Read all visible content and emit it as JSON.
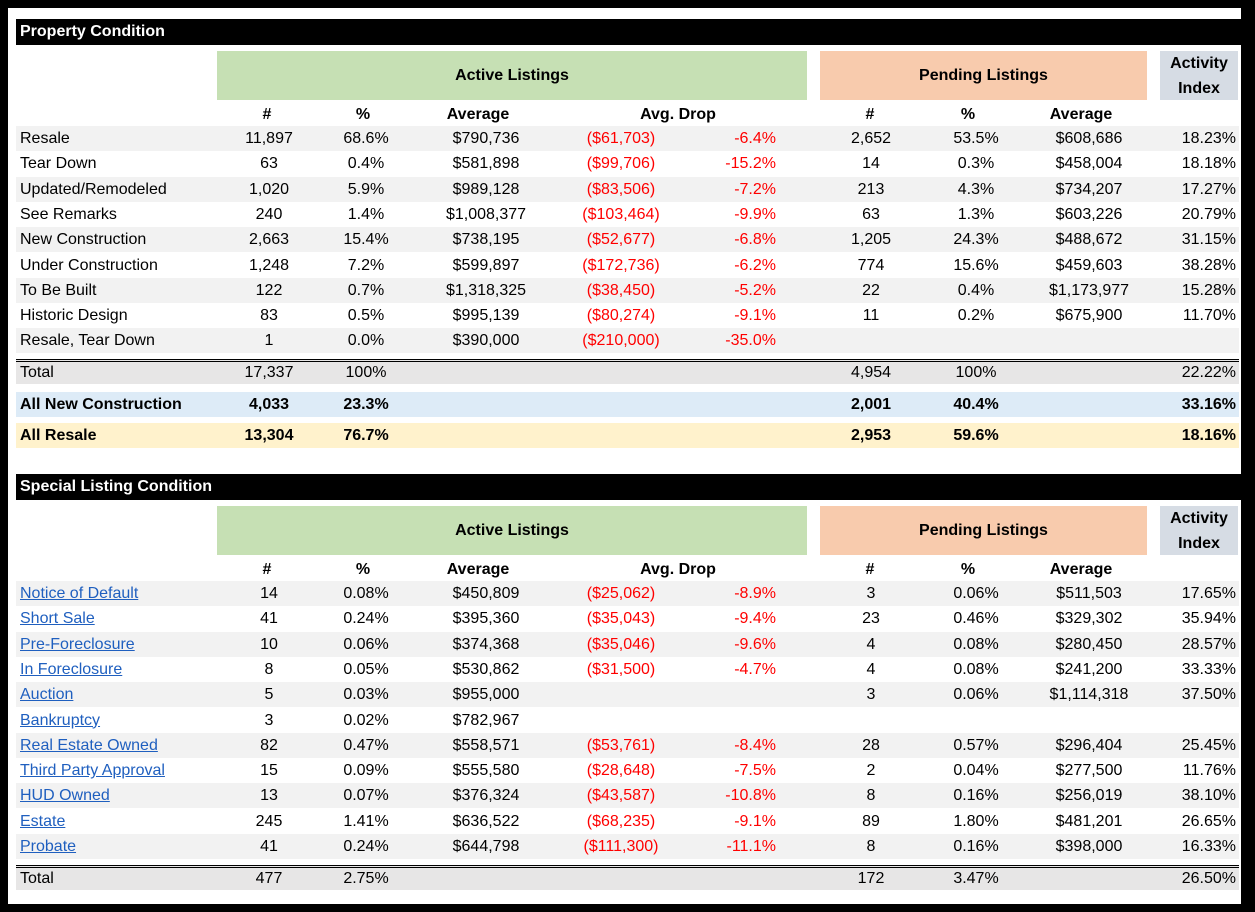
{
  "property": {
    "title": "Property Condition",
    "active_label": "Active Listings",
    "pending_label": "Pending Listings",
    "activity_label_1": "Activity",
    "activity_label_2": "Index",
    "cols": {
      "num": "#",
      "pct": "%",
      "avg": "Average",
      "drop": "Avg. Drop",
      "p_num": "#",
      "p_pct": "%",
      "p_avg": "Average"
    },
    "rows": [
      {
        "label": "Resale",
        "num": "11,897",
        "pct": "68.6%",
        "avg": "$790,736",
        "drop": "($61,703)",
        "drop_pct": "-6.4%",
        "p_num": "2,652",
        "p_pct": "53.5%",
        "p_avg": "$608,686",
        "ai": "18.23%"
      },
      {
        "label": "Tear Down",
        "num": "63",
        "pct": "0.4%",
        "avg": "$581,898",
        "drop": "($99,706)",
        "drop_pct": "-15.2%",
        "p_num": "14",
        "p_pct": "0.3%",
        "p_avg": "$458,004",
        "ai": "18.18%"
      },
      {
        "label": "Updated/Remodeled",
        "num": "1,020",
        "pct": "5.9%",
        "avg": "$989,128",
        "drop": "($83,506)",
        "drop_pct": "-7.2%",
        "p_num": "213",
        "p_pct": "4.3%",
        "p_avg": "$734,207",
        "ai": "17.27%"
      },
      {
        "label": "See Remarks",
        "num": "240",
        "pct": "1.4%",
        "avg": "$1,008,377",
        "drop": "($103,464)",
        "drop_pct": "-9.9%",
        "p_num": "63",
        "p_pct": "1.3%",
        "p_avg": "$603,226",
        "ai": "20.79%"
      },
      {
        "label": "New Construction",
        "num": "2,663",
        "pct": "15.4%",
        "avg": "$738,195",
        "drop": "($52,677)",
        "drop_pct": "-6.8%",
        "p_num": "1,205",
        "p_pct": "24.3%",
        "p_avg": "$488,672",
        "ai": "31.15%"
      },
      {
        "label": "Under Construction",
        "num": "1,248",
        "pct": "7.2%",
        "avg": "$599,897",
        "drop": "($172,736)",
        "drop_pct": "-6.2%",
        "p_num": "774",
        "p_pct": "15.6%",
        "p_avg": "$459,603",
        "ai": "38.28%"
      },
      {
        "label": "To Be Built",
        "num": "122",
        "pct": "0.7%",
        "avg": "$1,318,325",
        "drop": "($38,450)",
        "drop_pct": "-5.2%",
        "p_num": "22",
        "p_pct": "0.4%",
        "p_avg": "$1,173,977",
        "ai": "15.28%"
      },
      {
        "label": "Historic Design",
        "num": "83",
        "pct": "0.5%",
        "avg": "$995,139",
        "drop": "($80,274)",
        "drop_pct": "-9.1%",
        "p_num": "11",
        "p_pct": "0.2%",
        "p_avg": "$675,900",
        "ai": "11.70%"
      },
      {
        "label": "Resale, Tear Down",
        "num": "1",
        "pct": "0.0%",
        "avg": "$390,000",
        "drop": "($210,000)",
        "drop_pct": "-35.0%",
        "p_num": "",
        "p_pct": "",
        "p_avg": "",
        "ai": ""
      }
    ],
    "total": {
      "label": "Total",
      "num": "17,337",
      "pct": "100%",
      "p_num": "4,954",
      "p_pct": "100%",
      "ai": "22.22%"
    },
    "new_construction": {
      "label": "All New Construction",
      "num": "4,033",
      "pct": "23.3%",
      "p_num": "2,001",
      "p_pct": "40.4%",
      "ai": "33.16%"
    },
    "resale": {
      "label": "All Resale",
      "num": "13,304",
      "pct": "76.7%",
      "p_num": "2,953",
      "p_pct": "59.6%",
      "ai": "18.16%"
    }
  },
  "special": {
    "title": "Special Listing Condition",
    "active_label": "Active Listings",
    "pending_label": "Pending Listings",
    "activity_label_1": "Activity",
    "activity_label_2": "Index",
    "cols": {
      "num": "#",
      "pct": "%",
      "avg": "Average",
      "drop": "Avg. Drop",
      "p_num": "#",
      "p_pct": "%",
      "p_avg": "Average"
    },
    "rows": [
      {
        "label": "Notice of Default",
        "num": "14",
        "pct": "0.08%",
        "avg": "$450,809",
        "drop": "($25,062)",
        "drop_pct": "-8.9%",
        "p_num": "3",
        "p_pct": "0.06%",
        "p_avg": "$511,503",
        "ai": "17.65%"
      },
      {
        "label": "Short Sale",
        "num": "41",
        "pct": "0.24%",
        "avg": "$395,360",
        "drop": "($35,043)",
        "drop_pct": "-9.4%",
        "p_num": "23",
        "p_pct": "0.46%",
        "p_avg": "$329,302",
        "ai": "35.94%"
      },
      {
        "label": "Pre-Foreclosure",
        "num": "10",
        "pct": "0.06%",
        "avg": "$374,368",
        "drop": "($35,046)",
        "drop_pct": "-9.6%",
        "p_num": "4",
        "p_pct": "0.08%",
        "p_avg": "$280,450",
        "ai": "28.57%"
      },
      {
        "label": "In Foreclosure",
        "num": "8",
        "pct": "0.05%",
        "avg": "$530,862",
        "drop": "($31,500)",
        "drop_pct": "-4.7%",
        "p_num": "4",
        "p_pct": "0.08%",
        "p_avg": "$241,200",
        "ai": "33.33%"
      },
      {
        "label": "Auction",
        "num": "5",
        "pct": "0.03%",
        "avg": "$955,000",
        "drop": "",
        "drop_pct": "",
        "p_num": "3",
        "p_pct": "0.06%",
        "p_avg": "$1,114,318",
        "ai": "37.50%"
      },
      {
        "label": "Bankruptcy",
        "num": "3",
        "pct": "0.02%",
        "avg": "$782,967",
        "drop": "",
        "drop_pct": "",
        "p_num": "",
        "p_pct": "",
        "p_avg": "",
        "ai": ""
      },
      {
        "label": "Real Estate Owned",
        "num": "82",
        "pct": "0.47%",
        "avg": "$558,571",
        "drop": "($53,761)",
        "drop_pct": "-8.4%",
        "p_num": "28",
        "p_pct": "0.57%",
        "p_avg": "$296,404",
        "ai": "25.45%"
      },
      {
        "label": "Third Party Approval",
        "num": "15",
        "pct": "0.09%",
        "avg": "$555,580",
        "drop": "($28,648)",
        "drop_pct": "-7.5%",
        "p_num": "2",
        "p_pct": "0.04%",
        "p_avg": "$277,500",
        "ai": "11.76%"
      },
      {
        "label": "HUD Owned",
        "num": "13",
        "pct": "0.07%",
        "avg": "$376,324",
        "drop": "($43,587)",
        "drop_pct": "-10.8%",
        "p_num": "8",
        "p_pct": "0.16%",
        "p_avg": "$256,019",
        "ai": "38.10%"
      },
      {
        "label": "Estate",
        "num": "245",
        "pct": "1.41%",
        "avg": "$636,522",
        "drop": "($68,235)",
        "drop_pct": "-9.1%",
        "p_num": "89",
        "p_pct": "1.80%",
        "p_avg": "$481,201",
        "ai": "26.65%"
      },
      {
        "label": "Probate",
        "num": "41",
        "pct": "0.24%",
        "avg": "$644,798",
        "drop": "($111,300)",
        "drop_pct": "-11.1%",
        "p_num": "8",
        "p_pct": "0.16%",
        "p_avg": "$398,000",
        "ai": "16.33%"
      }
    ],
    "total": {
      "label": "Total",
      "num": "477",
      "pct": "2.75%",
      "p_num": "172",
      "p_pct": "3.47%",
      "ai": "26.50%"
    }
  }
}
